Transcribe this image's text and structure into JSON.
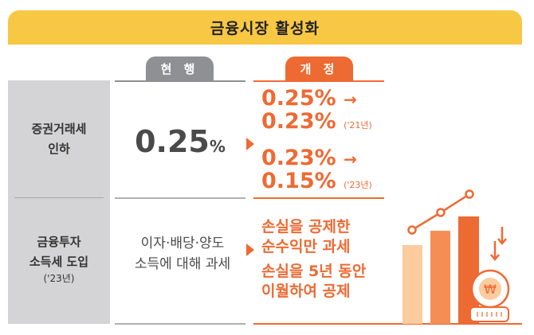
{
  "title": "금융시장 활성화",
  "columns": {
    "current": "현 행",
    "revised": "개 정"
  },
  "rows": [
    {
      "label": "증권거래세 인하",
      "label_lines": [
        "증권거래세",
        "인하"
      ],
      "current": {
        "value": "0.25",
        "unit": "%"
      },
      "revised": [
        {
          "from": "0.25%",
          "arrow": "→",
          "to": "0.23%",
          "year": "('21년)"
        },
        {
          "from": "0.23%",
          "arrow": "→",
          "to": "0.15%",
          "year": "('23년)"
        }
      ]
    },
    {
      "label_lines": [
        "금융투자",
        "소득세 도입"
      ],
      "label_note": "('23년)",
      "current_lines": [
        "이자·배당·양도",
        "소득에 대해 과세"
      ],
      "revised_lines": [
        "손실을 공제한",
        "순수익만 과세",
        "손실을 5년 동안",
        "이월하여 공제"
      ]
    }
  ],
  "illustration": {
    "icon": "bar-chart-with-won-coin-icon",
    "coin_symbol": "₩"
  },
  "colors": {
    "header": "#F8C744",
    "accent": "#EE6A33",
    "gray_tab": "#8F9093",
    "left_col": "#D4D4D6"
  }
}
